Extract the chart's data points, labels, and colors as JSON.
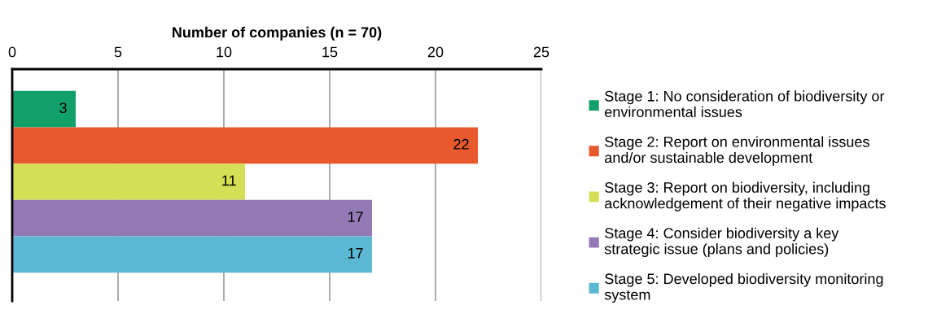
{
  "chart_data": {
    "type": "bar",
    "orientation": "horizontal",
    "xlabel": "Number of companies (n = 70)",
    "categories": [
      null,
      null,
      null,
      null,
      null
    ],
    "series": [
      {
        "name": "Stage 1: No consideration of biodiversity or\nenvironmental issues",
        "color": "#12a06a",
        "values": [
          3,
          null,
          null,
          null,
          null
        ]
      },
      {
        "name": "Stage 2: Report on environmental issues\nand/or sustainable development",
        "color": "#e85a2e",
        "values": [
          null,
          22,
          null,
          null,
          null
        ]
      },
      {
        "name": "Stage 3: Report on biodiversity, including\nacknowledgement of their negative impacts",
        "color": "#d4df55",
        "values": [
          null,
          null,
          11,
          null,
          null
        ]
      },
      {
        "name": "Stage 4: Consider biodiversity a key\nstrategic issue (plans and policies)",
        "color": "#937ab5",
        "values": [
          null,
          null,
          null,
          17,
          null
        ]
      },
      {
        "name": "Stage 5: Developed biodiversity monitoring\nsystem",
        "color": "#5bb8d3",
        "values": [
          null,
          null,
          null,
          null,
          17
        ]
      }
    ],
    "xlim": [
      0,
      25
    ],
    "xticks": [
      0,
      5,
      10,
      15,
      20,
      25
    ],
    "data_labels": true,
    "grid": "x",
    "legend": "right",
    "tick_labels": "x"
  }
}
